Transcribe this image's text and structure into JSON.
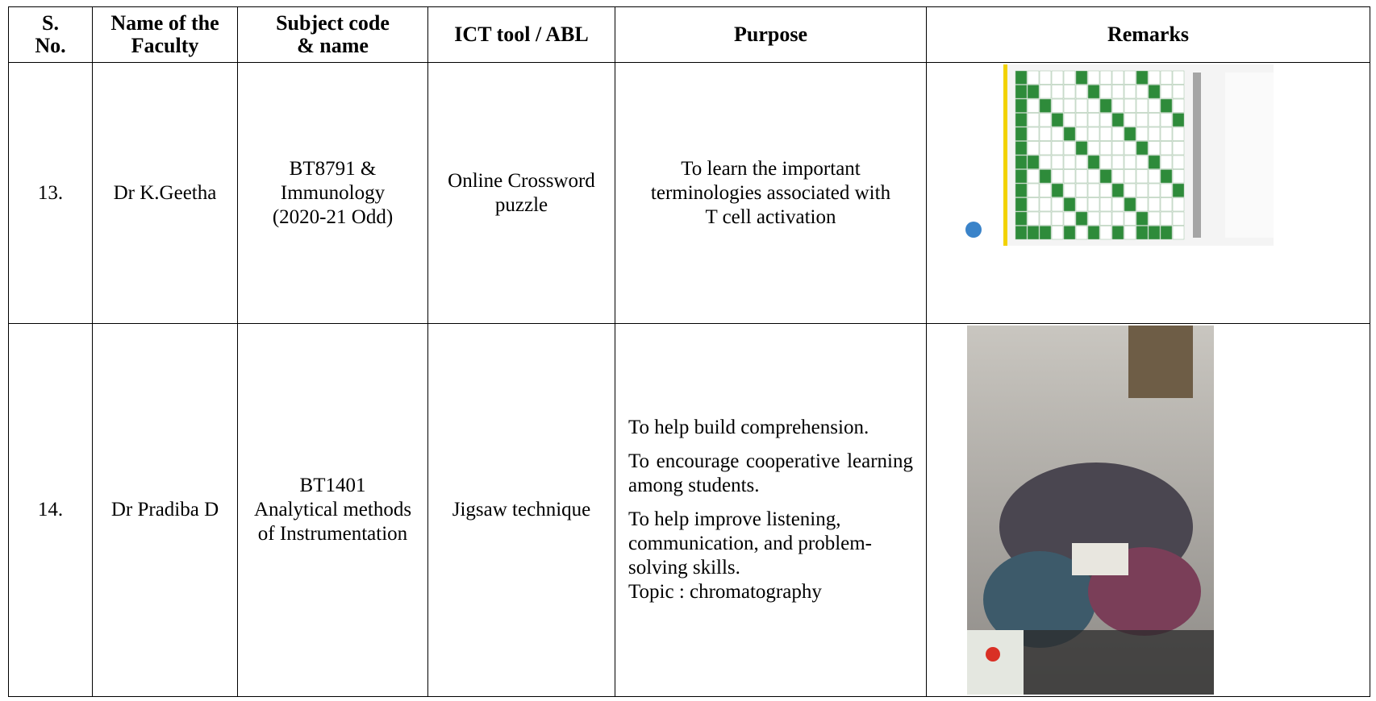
{
  "table": {
    "header": [
      "S. No.",
      "Name of the Faculty",
      "Subject code & name",
      "ICT tool / ABL",
      "Purpose",
      "Remarks"
    ],
    "rows": [
      {
        "sno": "13.",
        "faculty": "Dr K.Geetha",
        "subject": [
          "BT8791 &",
          "Immunology",
          "(2020-21 Odd)"
        ],
        "tool": "Online Crossword puzzle",
        "purpose": [
          "To learn the important terminologies associated with T cell activation"
        ]
      },
      {
        "sno": "14.",
        "faculty": "Dr Pradiba D",
        "subject": [
          "BT1401",
          "Analytical methods of Instrumentation"
        ],
        "tool": "Jigsaw technique",
        "purpose": [
          "To help build comprehension.",
          "To encourage cooperative learning among students.",
          "To help improve listening, communication, and problem-solving skills."
        ],
        "topic": "Topic : chromatography"
      }
    ]
  }
}
